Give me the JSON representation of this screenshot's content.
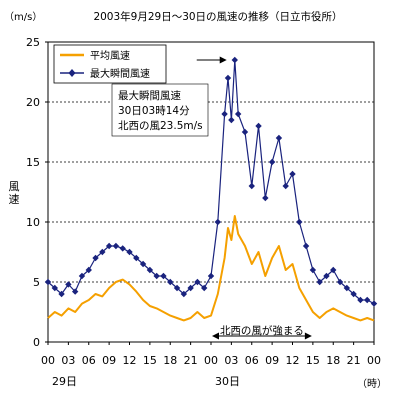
{
  "chart_data": {
    "type": "line",
    "title": "2003年9月29日～30日の風速の推移（日立市役所）",
    "y_unit": "（m/s）",
    "ylabel": "風速",
    "xlabel_unit": "（時）",
    "ylim": [
      0,
      25
    ],
    "y_ticks": [
      "0",
      "5",
      "10",
      "15",
      "20",
      "25"
    ],
    "x_ticks": [
      "00",
      "03",
      "06",
      "09",
      "12",
      "15",
      "18",
      "21",
      "00",
      "03",
      "06",
      "09",
      "12",
      "15",
      "18",
      "21",
      "00"
    ],
    "day_labels": [
      {
        "text": "29日",
        "hour": 0
      },
      {
        "text": "30日",
        "hour": 24
      }
    ],
    "grid": "horizontal-dashed",
    "legend_placement": "top-left",
    "annotations": {
      "max_box": [
        "最大瞬間風速",
        "30日03時14分",
        "北西の風23.5m/s"
      ],
      "max_arrow_target": {
        "hour": 27.2,
        "value": 23.5
      },
      "period_label": "北西の風が強まる",
      "period_range": [
        24,
        39
      ]
    },
    "series": [
      {
        "name": "平均風速",
        "color": "#f5a000",
        "marker": "none",
        "x": [
          0,
          1,
          2,
          3,
          4,
          5,
          6,
          7,
          8,
          9,
          10,
          11,
          12,
          13,
          14,
          15,
          16,
          17,
          18,
          19,
          20,
          21,
          22,
          23,
          24,
          25,
          26,
          26.5,
          27,
          27.5,
          28,
          29,
          30,
          31,
          32,
          33,
          34,
          35,
          36,
          37,
          38,
          39,
          40,
          41,
          42,
          43,
          44,
          45,
          46,
          47,
          48
        ],
        "values": [
          2.0,
          2.5,
          2.2,
          2.8,
          2.5,
          3.2,
          3.5,
          4.0,
          3.8,
          4.5,
          5.0,
          5.2,
          4.8,
          4.2,
          3.5,
          3.0,
          2.8,
          2.5,
          2.2,
          2.0,
          1.8,
          2.0,
          2.5,
          2.0,
          2.2,
          4.0,
          7.0,
          9.5,
          8.5,
          10.5,
          9.0,
          8.0,
          6.5,
          7.5,
          5.5,
          7.0,
          8.0,
          6.0,
          6.5,
          4.5,
          3.5,
          2.5,
          2.0,
          2.5,
          2.8,
          2.5,
          2.2,
          2.0,
          1.8,
          2.0,
          1.8
        ]
      },
      {
        "name": "最大瞬間風速",
        "color": "#1a237e",
        "marker": "diamond",
        "x": [
          0,
          1,
          2,
          3,
          4,
          5,
          6,
          7,
          8,
          9,
          10,
          11,
          12,
          13,
          14,
          15,
          16,
          17,
          18,
          19,
          20,
          21,
          22,
          23,
          24,
          25,
          26,
          26.5,
          27,
          27.5,
          28,
          29,
          30,
          31,
          32,
          33,
          34,
          35,
          36,
          37,
          38,
          39,
          40,
          41,
          42,
          43,
          44,
          45,
          46,
          47,
          48
        ],
        "values": [
          5.0,
          4.5,
          4.0,
          4.8,
          4.2,
          5.5,
          6.0,
          7.0,
          7.5,
          8.0,
          8.0,
          7.8,
          7.5,
          7.0,
          6.5,
          6.0,
          5.5,
          5.5,
          5.0,
          4.5,
          4.0,
          4.5,
          5.0,
          4.5,
          5.5,
          10.0,
          19.0,
          22.0,
          18.5,
          23.5,
          19.0,
          17.5,
          13.0,
          18.0,
          12.0,
          15.0,
          17.0,
          13.0,
          14.0,
          10.0,
          8.0,
          6.0,
          5.0,
          5.5,
          6.0,
          5.0,
          4.5,
          4.0,
          3.5,
          3.5,
          3.2
        ]
      }
    ]
  }
}
